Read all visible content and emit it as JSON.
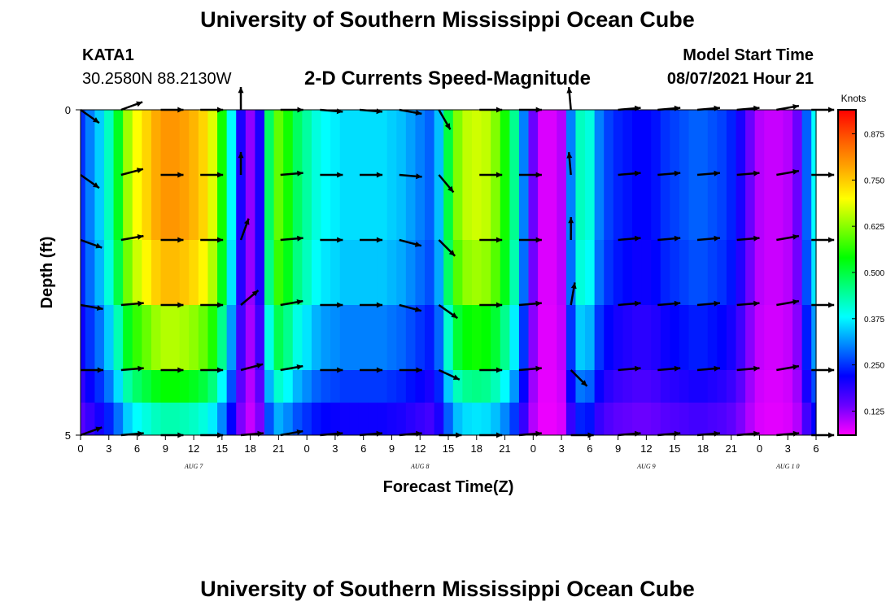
{
  "header": {
    "title": "University of Southern Mississippi Ocean Cube",
    "station_id": "KATA1",
    "station_coords": "30.2580N  88.2130W",
    "plot_title": "2-D Currents Speed-Magnitude",
    "model_label": "Model Start Time",
    "model_time": "08/07/2021 Hour 21"
  },
  "footer": {
    "title": "University of Southern Mississippi Ocean Cube"
  },
  "chart_data": {
    "type": "heatmap",
    "title": "2-D Currents Speed-Magnitude",
    "xlabel": "Forecast Time(Z)",
    "ylabel": "Depth (ft)",
    "x_hour_range": [
      0,
      78
    ],
    "y_range": [
      0,
      5
    ],
    "y_ticks": [
      "0",
      "5"
    ],
    "x_ticks": [
      {
        "h": 0,
        "label": "0"
      },
      {
        "h": 3,
        "label": "3"
      },
      {
        "h": 6,
        "label": "6"
      },
      {
        "h": 9,
        "label": "9"
      },
      {
        "h": 12,
        "label": "12"
      },
      {
        "h": 15,
        "label": "15"
      },
      {
        "h": 18,
        "label": "18"
      },
      {
        "h": 21,
        "label": "21"
      },
      {
        "h": 24,
        "label": "0"
      },
      {
        "h": 27,
        "label": "3"
      },
      {
        "h": 30,
        "label": "6"
      },
      {
        "h": 33,
        "label": "9"
      },
      {
        "h": 36,
        "label": "12"
      },
      {
        "h": 39,
        "label": "15"
      },
      {
        "h": 42,
        "label": "18"
      },
      {
        "h": 45,
        "label": "21"
      },
      {
        "h": 48,
        "label": "0"
      },
      {
        "h": 51,
        "label": "3"
      },
      {
        "h": 54,
        "label": "6"
      },
      {
        "h": 57,
        "label": "9"
      },
      {
        "h": 60,
        "label": "12"
      },
      {
        "h": 63,
        "label": "15"
      },
      {
        "h": 66,
        "label": "18"
      },
      {
        "h": 69,
        "label": "21"
      },
      {
        "h": 72,
        "label": "0"
      },
      {
        "h": 75,
        "label": "3"
      },
      {
        "h": 78,
        "label": "6"
      }
    ],
    "date_labels": [
      {
        "h": 12,
        "label": "AUG  7"
      },
      {
        "h": 36,
        "label": "AUG  8"
      },
      {
        "h": 60,
        "label": "AUG  9"
      },
      {
        "h": 75,
        "label": "AUG  1 0"
      }
    ],
    "colorbar": {
      "unit": "Knots",
      "min": 0.06,
      "max": 0.94,
      "tick_values": [
        0.125,
        0.25,
        0.375,
        0.5,
        0.625,
        0.75,
        0.875
      ],
      "tick_labels": [
        "0.125",
        "0.250",
        "0.375",
        "0.500",
        "0.625",
        "0.750",
        "0.875"
      ],
      "colors": [
        "#ff00ff",
        "#6a00ff",
        "#0000ff",
        "#0080ff",
        "#00ffff",
        "#00ff80",
        "#00ff00",
        "#80ff00",
        "#ffff00",
        "#ffaa00",
        "#ff5a00",
        "#ff0000"
      ]
    },
    "speed_profile": [
      {
        "h": 0,
        "s": 0.25
      },
      {
        "h": 1,
        "s": 0.3
      },
      {
        "h": 2,
        "s": 0.35
      },
      {
        "h": 3,
        "s": 0.42
      },
      {
        "h": 4,
        "s": 0.52
      },
      {
        "h": 5,
        "s": 0.64
      },
      {
        "h": 6,
        "s": 0.7
      },
      {
        "h": 7,
        "s": 0.74
      },
      {
        "h": 8,
        "s": 0.78
      },
      {
        "h": 9,
        "s": 0.8
      },
      {
        "h": 10,
        "s": 0.8
      },
      {
        "h": 11,
        "s": 0.79
      },
      {
        "h": 12,
        "s": 0.77
      },
      {
        "h": 13,
        "s": 0.74
      },
      {
        "h": 14,
        "s": 0.68
      },
      {
        "h": 15,
        "s": 0.55
      },
      {
        "h": 16,
        "s": 0.38
      },
      {
        "h": 17,
        "s": 0.2
      },
      {
        "h": 18,
        "s": 0.12
      },
      {
        "h": 19,
        "s": 0.2
      },
      {
        "h": 20,
        "s": 0.48
      },
      {
        "h": 21,
        "s": 0.6
      },
      {
        "h": 22,
        "s": 0.55
      },
      {
        "h": 23,
        "s": 0.48
      },
      {
        "h": 24,
        "s": 0.44
      },
      {
        "h": 25,
        "s": 0.4
      },
      {
        "h": 26,
        "s": 0.38
      },
      {
        "h": 27,
        "s": 0.37
      },
      {
        "h": 28,
        "s": 0.36
      },
      {
        "h": 29,
        "s": 0.36
      },
      {
        "h": 30,
        "s": 0.36
      },
      {
        "h": 31,
        "s": 0.36
      },
      {
        "h": 32,
        "s": 0.36
      },
      {
        "h": 33,
        "s": 0.35
      },
      {
        "h": 34,
        "s": 0.34
      },
      {
        "h": 35,
        "s": 0.32
      },
      {
        "h": 36,
        "s": 0.3
      },
      {
        "h": 37,
        "s": 0.28
      },
      {
        "h": 38,
        "s": 0.34
      },
      {
        "h": 39,
        "s": 0.5
      },
      {
        "h": 40,
        "s": 0.62
      },
      {
        "h": 41,
        "s": 0.66
      },
      {
        "h": 42,
        "s": 0.67
      },
      {
        "h": 43,
        "s": 0.66
      },
      {
        "h": 44,
        "s": 0.62
      },
      {
        "h": 45,
        "s": 0.55
      },
      {
        "h": 46,
        "s": 0.45
      },
      {
        "h": 47,
        "s": 0.3
      },
      {
        "h": 48,
        "s": 0.14
      },
      {
        "h": 49,
        "s": 0.08
      },
      {
        "h": 50,
        "s": 0.08
      },
      {
        "h": 51,
        "s": 0.1
      },
      {
        "h": 52,
        "s": 0.3
      },
      {
        "h": 53,
        "s": 0.42
      },
      {
        "h": 54,
        "s": 0.4
      },
      {
        "h": 55,
        "s": 0.3
      },
      {
        "h": 56,
        "s": 0.26
      },
      {
        "h": 57,
        "s": 0.24
      },
      {
        "h": 58,
        "s": 0.23
      },
      {
        "h": 59,
        "s": 0.22
      },
      {
        "h": 60,
        "s": 0.22
      },
      {
        "h": 61,
        "s": 0.23
      },
      {
        "h": 62,
        "s": 0.25
      },
      {
        "h": 63,
        "s": 0.26
      },
      {
        "h": 64,
        "s": 0.27
      },
      {
        "h": 65,
        "s": 0.28
      },
      {
        "h": 66,
        "s": 0.28
      },
      {
        "h": 67,
        "s": 0.27
      },
      {
        "h": 68,
        "s": 0.26
      },
      {
        "h": 69,
        "s": 0.24
      },
      {
        "h": 70,
        "s": 0.2
      },
      {
        "h": 71,
        "s": 0.14
      },
      {
        "h": 72,
        "s": 0.1
      },
      {
        "h": 73,
        "s": 0.09
      },
      {
        "h": 74,
        "s": 0.09
      },
      {
        "h": 75,
        "s": 0.1
      },
      {
        "h": 76,
        "s": 0.14
      },
      {
        "h": 77,
        "s": 0.28
      },
      {
        "h": 78,
        "s": 0.38
      }
    ],
    "depth_rows": [
      {
        "depth": 0.0,
        "factor": 1.0
      },
      {
        "depth": 1.0,
        "factor": 1.0
      },
      {
        "depth": 2.0,
        "factor": 0.95
      },
      {
        "depth": 3.0,
        "factor": 0.8
      },
      {
        "depth": 4.0,
        "factor": 0.65
      },
      {
        "depth": 4.5,
        "factor": 0.5
      }
    ],
    "vector_depths": [
      0,
      1,
      2,
      3,
      4,
      5
    ],
    "vectors": [
      {
        "h": 0,
        "a": [
          -35,
          -35,
          -20,
          -10,
          0,
          20
        ]
      },
      {
        "h": 4.3,
        "a": [
          20,
          15,
          10,
          5,
          5,
          5
        ]
      },
      {
        "h": 8.5,
        "a": [
          0,
          0,
          0,
          0,
          0,
          0
        ]
      },
      {
        "h": 12.7,
        "a": [
          0,
          0,
          0,
          0,
          0,
          0
        ]
      },
      {
        "h": 17,
        "a": [
          90,
          90,
          70,
          40,
          15,
          5
        ]
      },
      {
        "h": 21.2,
        "a": [
          0,
          5,
          5,
          10,
          10,
          10
        ]
      },
      {
        "h": 25.4,
        "a": [
          -5,
          0,
          0,
          0,
          0,
          5
        ]
      },
      {
        "h": 29.6,
        "a": [
          -5,
          0,
          0,
          0,
          0,
          5
        ]
      },
      {
        "h": 33.8,
        "a": [
          -10,
          -5,
          -15,
          -15,
          0,
          5
        ]
      },
      {
        "h": 38,
        "a": [
          -60,
          -50,
          -45,
          -35,
          -25,
          0
        ]
      },
      {
        "h": 42.3,
        "a": [
          0,
          0,
          0,
          0,
          0,
          0
        ]
      },
      {
        "h": 46.5,
        "a": [
          0,
          0,
          0,
          5,
          5,
          5
        ]
      },
      {
        "h": 52,
        "a": [
          95,
          95,
          90,
          80,
          -45,
          0
        ]
      },
      {
        "h": 57,
        "a": [
          5,
          5,
          5,
          5,
          5,
          5
        ]
      },
      {
        "h": 61.2,
        "a": [
          5,
          5,
          5,
          5,
          5,
          5
        ]
      },
      {
        "h": 65.4,
        "a": [
          5,
          5,
          5,
          5,
          5,
          5
        ]
      },
      {
        "h": 69.6,
        "a": [
          5,
          5,
          5,
          5,
          5,
          5
        ]
      },
      {
        "h": 73.8,
        "a": [
          10,
          10,
          10,
          10,
          10,
          5
        ]
      },
      {
        "h": 77.5,
        "a": [
          0,
          0,
          0,
          0,
          0,
          0
        ]
      }
    ]
  }
}
